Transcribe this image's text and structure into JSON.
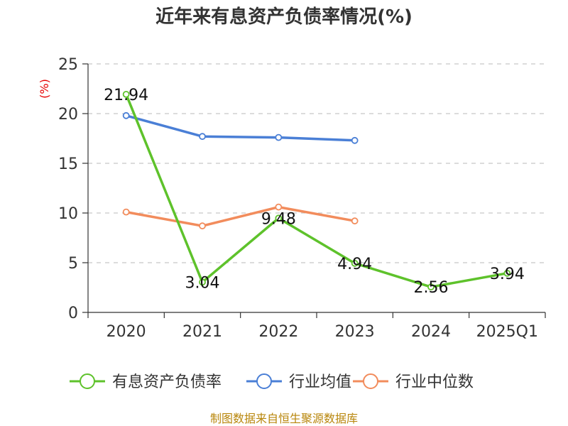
{
  "chart_data": {
    "type": "line",
    "title": "近年来有息资产负债率情况(%)",
    "y_unit": "(%)",
    "categories": [
      "2020",
      "2021",
      "2022",
      "2023",
      "2024",
      "2025Q1"
    ],
    "ylim": [
      0,
      25
    ],
    "yticks": [
      0,
      5,
      10,
      15,
      20,
      25
    ],
    "grid": true,
    "legend_position": "bottom",
    "series": [
      {
        "name": "有息资产负债率",
        "color": "#5ec22b",
        "values": [
          21.94,
          3.04,
          9.48,
          4.94,
          2.56,
          3.94
        ],
        "data_labels": [
          "21.94",
          "3.04",
          "9.48",
          "4.94",
          "2.56",
          "3.94"
        ]
      },
      {
        "name": "行业均值",
        "color": "#4a7fd6",
        "values": [
          19.8,
          17.7,
          17.6,
          17.3,
          null,
          null
        ]
      },
      {
        "name": "行业中位数",
        "color": "#f28c5c",
        "values": [
          10.1,
          8.7,
          10.6,
          9.2,
          null,
          null
        ]
      }
    ],
    "source": "制图数据来自恒生聚源数据库"
  }
}
